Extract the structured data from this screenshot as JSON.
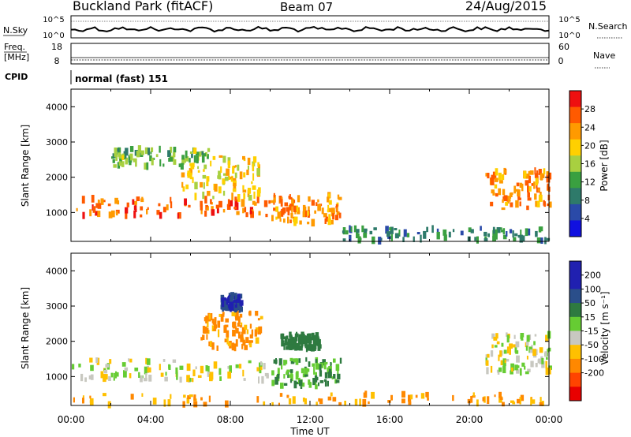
{
  "header": {
    "site": "Buckland Park (fitACF)",
    "beam": "Beam 07",
    "date": "24/Aug/2015"
  },
  "noise_panel": {
    "left_label": "N.Sky",
    "right_label": "N.Search",
    "left_ticks": [
      "10^5",
      "10^0"
    ],
    "right_ticks": [
      "10^5",
      "10^0"
    ]
  },
  "freq_panel": {
    "left_label_line1": "Freq.",
    "left_label_line2": "[MHz]",
    "left_ticks": [
      "18",
      "8"
    ],
    "right_label": "Nave",
    "right_ticks": [
      "60",
      "0"
    ]
  },
  "cpid_panel": {
    "label": "CPID",
    "text": "normal (fast) 151"
  },
  "colors": {
    "power_scale": [
      "#1010e0",
      "#2a4aa8",
      "#2e7a6a",
      "#3aa040",
      "#a8d040",
      "#ffd000",
      "#ff9a00",
      "#ff5a00",
      "#ee1010"
    ],
    "velocity_scale": [
      "#2020b0",
      "#2a4e8a",
      "#2e7a40",
      "#66cc33",
      "#c8c8c0",
      "#ffc000",
      "#ff8800",
      "#ff4400",
      "#e80000"
    ]
  },
  "chart_data": [
    {
      "type": "heatmap",
      "quantity": "Power",
      "xlabel": "",
      "ylabel": "Slant Range [km]",
      "colorbar_label": "Power [dB]",
      "colorbar_ticks": [
        4,
        8,
        12,
        16,
        20,
        24,
        28
      ],
      "colorbar_range": [
        0,
        32
      ],
      "x_ticks": [
        "00:00",
        "04:00",
        "08:00",
        "12:00",
        "16:00",
        "20:00",
        "00:00"
      ],
      "x_range_hours": [
        0,
        24
      ],
      "y_ticks": [
        1000,
        2000,
        3000,
        4000
      ],
      "y_range_km": [
        180,
        4500
      ],
      "echo_regions": [
        {
          "t_start": 0.0,
          "t_end": 10.0,
          "range_start": 900,
          "range_end": 1400,
          "power": 26
        },
        {
          "t_start": 5.5,
          "t_end": 9.5,
          "range_start": 1400,
          "range_end": 2600,
          "power": 20
        },
        {
          "t_start": 2.0,
          "t_end": 7.0,
          "range_start": 2300,
          "range_end": 2800,
          "power": 14
        },
        {
          "t_start": 10.0,
          "t_end": 13.5,
          "range_start": 700,
          "range_end": 1500,
          "power": 24
        },
        {
          "t_start": 13.5,
          "t_end": 24.0,
          "range_start": 200,
          "range_end": 550,
          "power": 10
        },
        {
          "t_start": 20.8,
          "t_end": 24.0,
          "range_start": 1100,
          "range_end": 2200,
          "power": 24
        }
      ]
    },
    {
      "type": "heatmap",
      "quantity": "Velocity",
      "xlabel": "Time UT",
      "ylabel": "Slant Range [km]",
      "colorbar_label": "Velocity [m s⁻¹]",
      "colorbar_ticks": [
        200,
        100,
        50,
        15,
        -15,
        -50,
        -100,
        -200
      ],
      "x_ticks": [
        "00:00",
        "04:00",
        "08:00",
        "12:00",
        "16:00",
        "20:00",
        "00:00"
      ],
      "x_range_hours": [
        0,
        24
      ],
      "y_ticks": [
        1000,
        2000,
        3000,
        4000
      ],
      "y_range_km": [
        180,
        4500
      ],
      "echo_regions": [
        {
          "t_start": 0.0,
          "t_end": 10.0,
          "range_start": 900,
          "range_end": 1500,
          "velocity": 0
        },
        {
          "t_start": 6.5,
          "t_end": 9.5,
          "range_start": 1800,
          "range_end": 2800,
          "velocity": -40
        },
        {
          "t_start": 7.5,
          "t_end": 8.5,
          "range_start": 2900,
          "range_end": 3300,
          "velocity": 150
        },
        {
          "t_start": 10.0,
          "t_end": 13.5,
          "range_start": 700,
          "range_end": 1500,
          "velocity": 30
        },
        {
          "t_start": 10.5,
          "t_end": 12.5,
          "range_start": 1800,
          "range_end": 2200,
          "velocity": 60
        },
        {
          "t_start": 0.0,
          "t_end": 24.0,
          "range_start": 200,
          "range_end": 500,
          "velocity": -30
        },
        {
          "t_start": 20.8,
          "t_end": 24.0,
          "range_start": 1100,
          "range_end": 2200,
          "velocity": 0
        }
      ]
    }
  ]
}
